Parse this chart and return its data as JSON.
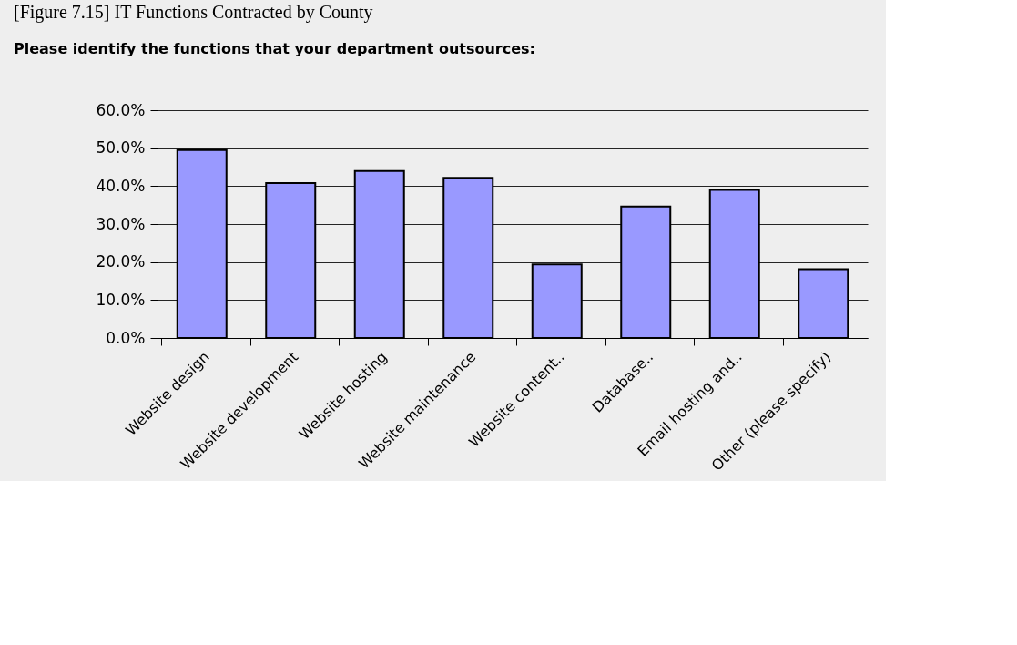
{
  "chart_data": {
    "type": "bar",
    "title": "Please identify the functions that your department outsources:",
    "annotations": [
      "[Figure 7.15] IT Functions Contracted by County"
    ],
    "categories": [
      "Website design",
      "Website development",
      "Website hosting",
      "Website maintenance",
      "Website content..",
      "Database..",
      "Email hosting and..",
      "Other (please specify)"
    ],
    "values": [
      49.5,
      40.8,
      44.0,
      42.2,
      19.4,
      34.6,
      39.0,
      18.1
    ],
    "color": "#9999ff",
    "ylim": [
      0,
      60
    ],
    "yticks": [
      {
        "value": 0,
        "label": "0.0%"
      },
      {
        "value": 10,
        "label": "10.0%"
      },
      {
        "value": 20,
        "label": "20.0%"
      },
      {
        "value": 30,
        "label": "30.0%"
      },
      {
        "value": 40,
        "label": "40.0%"
      },
      {
        "value": 50,
        "label": "50.0%"
      },
      {
        "value": 60,
        "label": "60.0%"
      }
    ],
    "grid": "y"
  }
}
